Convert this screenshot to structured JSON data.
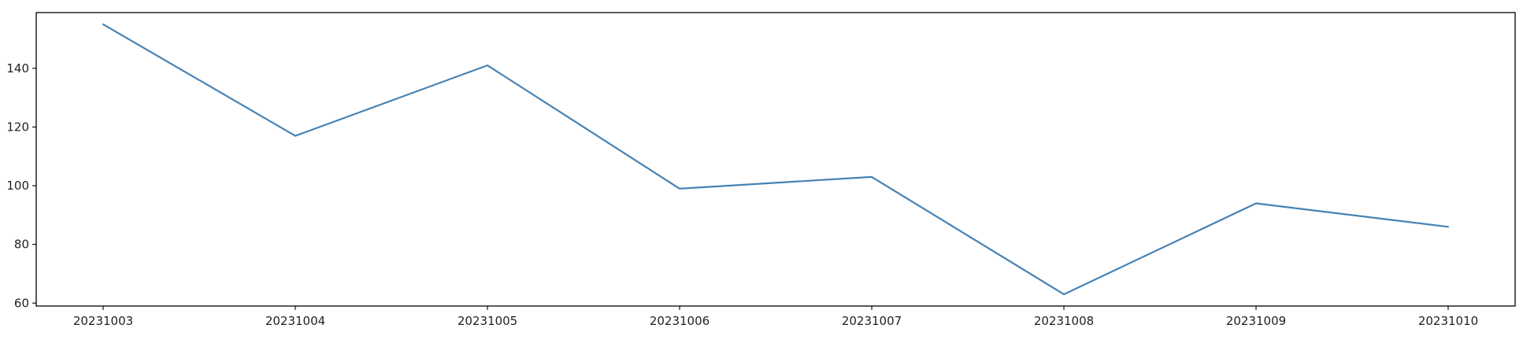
{
  "chart_data": {
    "type": "line",
    "title": "",
    "xlabel": "",
    "ylabel": "",
    "categories": [
      "20231003",
      "20231004",
      "20231005",
      "20231006",
      "20231007",
      "20231008",
      "20231009",
      "20231010"
    ],
    "series": [
      {
        "values": [
          155,
          117,
          141,
          99,
          103,
          63,
          94,
          86
        ],
        "color": "#4682b4"
      }
    ],
    "ylim": [
      59,
      159
    ],
    "yticks": [
      60,
      80,
      100,
      120,
      140
    ],
    "grid": false,
    "legend": "none"
  }
}
